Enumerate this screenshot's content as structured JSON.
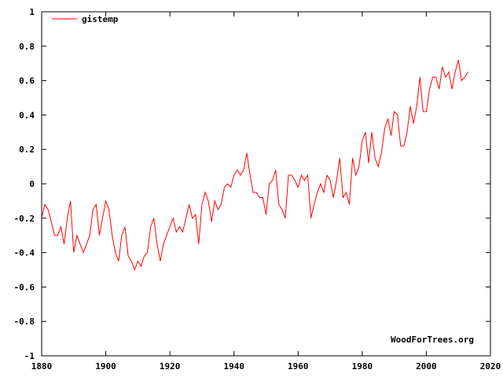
{
  "chart_data": {
    "type": "line",
    "title": "",
    "xlabel": "",
    "ylabel": "",
    "xlim": [
      1880,
      2020
    ],
    "ylim": [
      -1,
      1
    ],
    "x_ticks": [
      1880,
      1900,
      1920,
      1940,
      1960,
      1980,
      2000,
      2020
    ],
    "y_ticks": [
      -1,
      -0.8,
      -0.6,
      -0.4,
      -0.2,
      0,
      0.2,
      0.4,
      0.6,
      0.8,
      1
    ],
    "x_tick_labels": [
      "1880",
      "1900",
      "1920",
      "1940",
      "1960",
      "1980",
      "2000",
      "2020"
    ],
    "y_tick_labels": [
      "-1",
      "-0.8",
      "-0.6",
      "-0.4",
      "-0.2",
      "0",
      "0.2",
      "0.4",
      "0.6",
      "0.8",
      "1"
    ],
    "grid": false,
    "legend": "top-left",
    "series": [
      {
        "name": "gistemp",
        "color": "#ff0000",
        "resolution": "annual",
        "x": [
          1880,
          1881,
          1882,
          1883,
          1884,
          1885,
          1886,
          1887,
          1888,
          1889,
          1890,
          1891,
          1892,
          1893,
          1894,
          1895,
          1896,
          1897,
          1898,
          1899,
          1900,
          1901,
          1902,
          1903,
          1904,
          1905,
          1906,
          1907,
          1908,
          1909,
          1910,
          1911,
          1912,
          1913,
          1914,
          1915,
          1916,
          1917,
          1918,
          1919,
          1920,
          1921,
          1922,
          1923,
          1924,
          1925,
          1926,
          1927,
          1928,
          1929,
          1930,
          1931,
          1932,
          1933,
          1934,
          1935,
          1936,
          1937,
          1938,
          1939,
          1940,
          1941,
          1942,
          1943,
          1944,
          1945,
          1946,
          1947,
          1948,
          1949,
          1950,
          1951,
          1952,
          1953,
          1954,
          1955,
          1956,
          1957,
          1958,
          1959,
          1960,
          1961,
          1962,
          1963,
          1964,
          1965,
          1966,
          1967,
          1968,
          1969,
          1970,
          1971,
          1972,
          1973,
          1974,
          1975,
          1976,
          1977,
          1978,
          1979,
          1980,
          1981,
          1982,
          1983,
          1984,
          1985,
          1986,
          1987,
          1988,
          1989,
          1990,
          1991,
          1992,
          1993,
          1994,
          1995,
          1996,
          1997,
          1998,
          1999,
          2000,
          2001,
          2002,
          2003,
          2004,
          2005,
          2006,
          2007,
          2008,
          2009,
          2010,
          2011,
          2012,
          2013
        ],
        "y": [
          -0.2,
          -0.12,
          -0.15,
          -0.22,
          -0.3,
          -0.3,
          -0.25,
          -0.35,
          -0.2,
          -0.1,
          -0.4,
          -0.3,
          -0.35,
          -0.4,
          -0.35,
          -0.3,
          -0.15,
          -0.12,
          -0.3,
          -0.2,
          -0.1,
          -0.15,
          -0.3,
          -0.4,
          -0.45,
          -0.3,
          -0.25,
          -0.42,
          -0.45,
          -0.5,
          -0.45,
          -0.48,
          -0.42,
          -0.4,
          -0.25,
          -0.2,
          -0.35,
          -0.45,
          -0.35,
          -0.3,
          -0.25,
          -0.2,
          -0.28,
          -0.25,
          -0.28,
          -0.2,
          -0.12,
          -0.2,
          -0.18,
          -0.35,
          -0.12,
          -0.05,
          -0.1,
          -0.22,
          -0.1,
          -0.15,
          -0.12,
          -0.02,
          0,
          -0.02,
          0.05,
          0.08,
          0.05,
          0.08,
          0.18,
          0.05,
          -0.05,
          -0.05,
          -0.08,
          -0.08,
          -0.18,
          0,
          0.02,
          0.08,
          -0.12,
          -0.15,
          -0.2,
          0.05,
          0.05,
          0.02,
          -0.02,
          0.05,
          0.02,
          0.05,
          -0.2,
          -0.12,
          -0.05,
          0,
          -0.05,
          0.05,
          0.02,
          -0.08,
          0.02,
          0.15,
          -0.08,
          -0.05,
          -0.12,
          0.15,
          0.05,
          0.1,
          0.25,
          0.3,
          0.12,
          0.3,
          0.15,
          0.1,
          0.18,
          0.32,
          0.38,
          0.28,
          0.42,
          0.4,
          0.22,
          0.22,
          0.3,
          0.45,
          0.35,
          0.45,
          0.62,
          0.42,
          0.42,
          0.55,
          0.62,
          0.62,
          0.55,
          0.68,
          0.62,
          0.65,
          0.55,
          0.65,
          0.72,
          0.6,
          0.62,
          0.65
        ]
      }
    ],
    "credit": "WoodForTrees.org"
  }
}
